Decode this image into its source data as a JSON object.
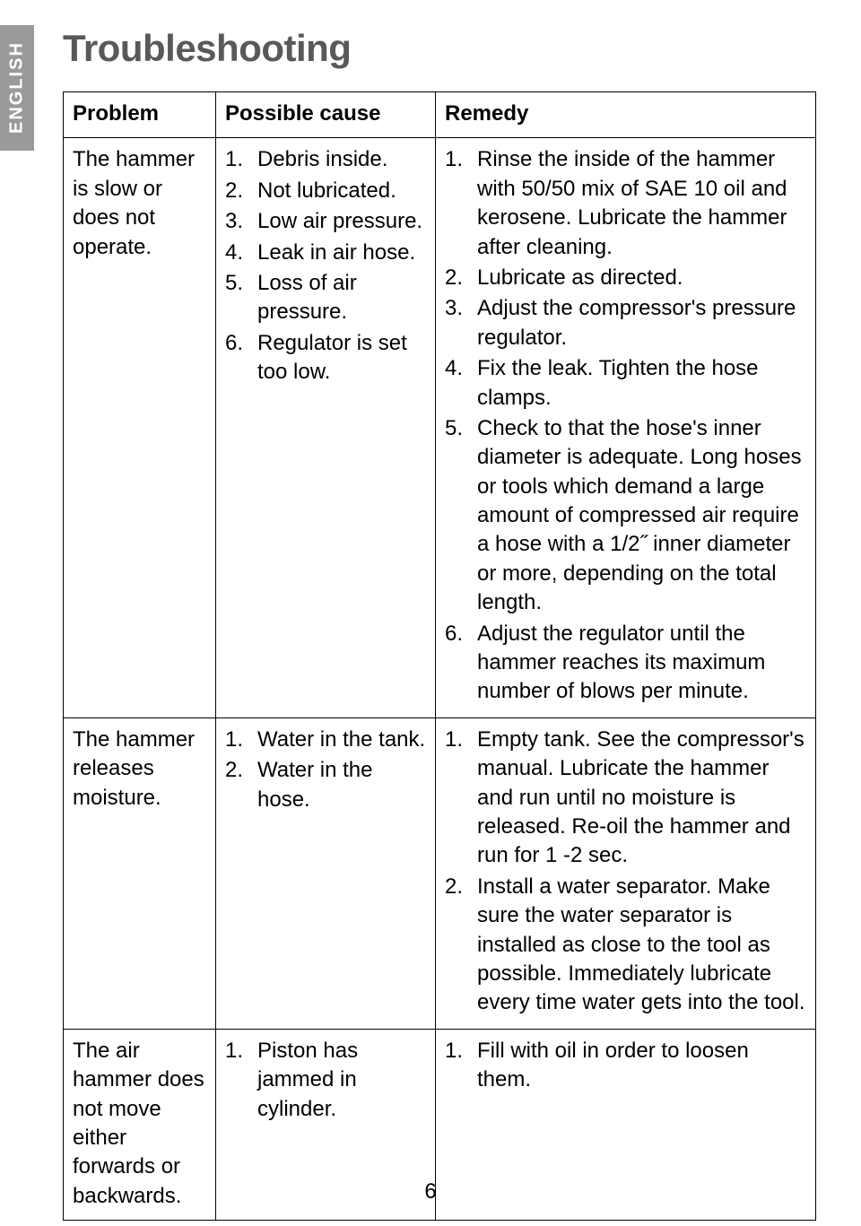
{
  "lang_tab": "ENGLISH",
  "title": "Troubleshooting",
  "page_number": "6",
  "colors": {
    "tab_background": "#9a9a9a",
    "tab_text": "#ffffff",
    "title_color": "#58595b",
    "body_text": "#000000",
    "border": "#000000",
    "background": "#ffffff"
  },
  "table": {
    "headers": {
      "problem": "Problem",
      "cause": "Possible cause",
      "remedy": "Remedy"
    },
    "rows": [
      {
        "problem": "The hammer is slow or does not operate.",
        "causes": [
          "Debris inside.",
          "Not lubricated.",
          "Low air pressure.",
          "Leak in air hose.",
          "Loss of air pressure.",
          "Regulator is set too low."
        ],
        "remedies": [
          "Rinse the inside of the hammer with 50/50 mix of SAE 10 oil and kerosene. Lubricate the hammer after cleaning.",
          "Lubricate as directed.",
          "Adjust the compressor's pressure regulator.",
          "Fix the leak. Tighten the hose clamps.",
          "Check to that the hose's inner diameter is adequate. Long hoses or tools which demand a large amount of compressed air require a hose with a 1/2˝ inner diameter or more, depending on the total length.",
          "Adjust the regulator until the hammer reaches its maximum number of blows per minute."
        ]
      },
      {
        "problem": "The hammer releases moisture.",
        "causes": [
          "Water in the tank.",
          "Water in the hose."
        ],
        "remedies": [
          "Empty tank. See the compressor's manual. Lubricate the hammer and run until no moisture is released. Re-oil the hammer and run for 1 -2 sec.",
          "Install a water separator. Make sure the water separator is installed as close to the tool as possible. Immediately lubricate every time water gets into the tool."
        ]
      },
      {
        "problem": "The air hammer does not move either forwards or backwards.",
        "causes": [
          "Piston has jammed in cylinder."
        ],
        "remedies": [
          "Fill with oil in order to loosen them."
        ]
      }
    ]
  }
}
